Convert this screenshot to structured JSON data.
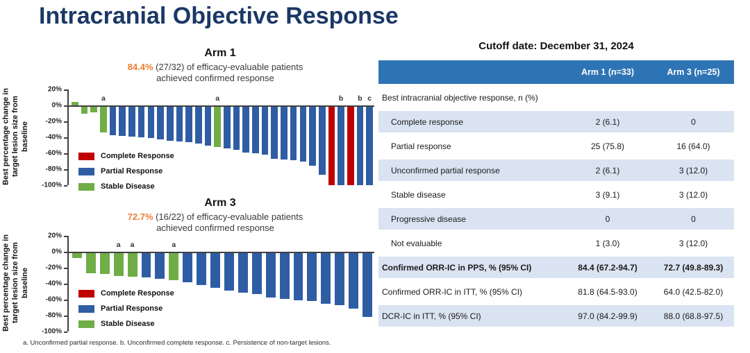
{
  "page": {
    "title": "Intracranial Objective Response",
    "footnote": "a. Unconfirmed partial response. b. Unconfirmed complete response. c. Persistence of non-target lesions."
  },
  "colors": {
    "title_navy": "#1b3866",
    "accent_orange": "#ED7D31",
    "bar_red": "#C00000",
    "bar_blue": "#2F5DA4",
    "bar_green": "#6FAE46",
    "axis": "#404040",
    "table_header_blue": "#2E74B5",
    "table_row_shade": "#DAE3F1"
  },
  "chart_data": [
    {
      "type": "bar",
      "name": "arm1",
      "title": "Arm 1",
      "headline": {
        "pct": "84.4%",
        "text": "(27/32) of efficacy-evaluable patients",
        "line2": "achieved confirmed response"
      },
      "ylabel": "Best percentage change in\ntarget lesion size from\nbaseline",
      "xlabel": "",
      "ylim": [
        -100,
        20
      ],
      "yticks": [
        20,
        0,
        -20,
        -40,
        -60,
        -80,
        -100
      ],
      "legend": [
        {
          "key": "red",
          "label": "Complete Response"
        },
        {
          "key": "blue",
          "label": "Partial Response"
        },
        {
          "key": "green",
          "label": "Stable Disease"
        }
      ],
      "bars": [
        {
          "v": 4,
          "c": "green"
        },
        {
          "v": -10,
          "c": "green"
        },
        {
          "v": -9,
          "c": "green"
        },
        {
          "v": -34,
          "c": "green",
          "note": "a"
        },
        {
          "v": -37,
          "c": "blue"
        },
        {
          "v": -38,
          "c": "blue"
        },
        {
          "v": -39,
          "c": "blue"
        },
        {
          "v": -40,
          "c": "blue"
        },
        {
          "v": -41,
          "c": "blue"
        },
        {
          "v": -43,
          "c": "blue"
        },
        {
          "v": -44,
          "c": "blue"
        },
        {
          "v": -45,
          "c": "blue"
        },
        {
          "v": -46,
          "c": "blue"
        },
        {
          "v": -48,
          "c": "blue"
        },
        {
          "v": -50,
          "c": "blue"
        },
        {
          "v": -52,
          "c": "green",
          "note": "a"
        },
        {
          "v": -54,
          "c": "blue"
        },
        {
          "v": -56,
          "c": "blue"
        },
        {
          "v": -59,
          "c": "blue"
        },
        {
          "v": -60,
          "c": "blue"
        },
        {
          "v": -62,
          "c": "blue"
        },
        {
          "v": -67,
          "c": "blue"
        },
        {
          "v": -68,
          "c": "blue"
        },
        {
          "v": -69,
          "c": "blue"
        },
        {
          "v": -70,
          "c": "blue"
        },
        {
          "v": -76,
          "c": "blue"
        },
        {
          "v": -87,
          "c": "blue"
        },
        {
          "v": -100,
          "c": "red"
        },
        {
          "v": -100,
          "c": "blue",
          "note": "b"
        },
        {
          "v": -100,
          "c": "red"
        },
        {
          "v": -100,
          "c": "blue",
          "note": "b"
        },
        {
          "v": -100,
          "c": "blue",
          "note": "c"
        }
      ]
    },
    {
      "type": "bar",
      "name": "arm3",
      "title": "Arm 3",
      "headline": {
        "pct": "72.7%",
        "text": "(16/22) of efficacy-evaluable patients",
        "line2": "achieved confirmed response"
      },
      "ylabel": "Best percentage change in\ntarget lesion size from\nbaseline",
      "xlabel": "",
      "ylim": [
        -100,
        20
      ],
      "yticks": [
        20,
        0,
        -20,
        -40,
        -60,
        -80,
        -100
      ],
      "legend": [
        {
          "key": "red",
          "label": "Complete Response"
        },
        {
          "key": "blue",
          "label": "Partial Response"
        },
        {
          "key": "green",
          "label": "Stable Disease"
        }
      ],
      "bars": [
        {
          "v": -8,
          "c": "green"
        },
        {
          "v": -27,
          "c": "green"
        },
        {
          "v": -28,
          "c": "green"
        },
        {
          "v": -30,
          "c": "green",
          "note": "a"
        },
        {
          "v": -31,
          "c": "green",
          "note": "a"
        },
        {
          "v": -32,
          "c": "blue"
        },
        {
          "v": -34,
          "c": "blue"
        },
        {
          "v": -36,
          "c": "green",
          "note": "a"
        },
        {
          "v": -38,
          "c": "blue"
        },
        {
          "v": -42,
          "c": "blue"
        },
        {
          "v": -45,
          "c": "blue"
        },
        {
          "v": -49,
          "c": "blue"
        },
        {
          "v": -51,
          "c": "blue"
        },
        {
          "v": -53,
          "c": "blue"
        },
        {
          "v": -57,
          "c": "blue"
        },
        {
          "v": -59,
          "c": "blue"
        },
        {
          "v": -61,
          "c": "blue"
        },
        {
          "v": -62,
          "c": "blue"
        },
        {
          "v": -65,
          "c": "blue"
        },
        {
          "v": -67,
          "c": "blue"
        },
        {
          "v": -71,
          "c": "blue"
        },
        {
          "v": -82,
          "c": "blue"
        }
      ]
    }
  ],
  "table": {
    "title": "Cutoff date: December 31, 2024",
    "columns": [
      "",
      "Arm 1 (n=33)",
      "Arm 3 (n=25)"
    ],
    "rows": [
      {
        "label": "Best intracranial objective response, n (%)",
        "arm1": "",
        "arm3": "",
        "section": true,
        "shaded": false,
        "bold": false,
        "indent": false
      },
      {
        "label": "Complete response",
        "arm1": "2 (6.1)",
        "arm3": "0",
        "section": false,
        "shaded": true,
        "bold": false,
        "indent": true
      },
      {
        "label": "Partial response",
        "arm1": "25 (75.8)",
        "arm3": "16 (64.0)",
        "section": false,
        "shaded": false,
        "bold": false,
        "indent": true
      },
      {
        "label": "Unconfirmed partial response",
        "arm1": "2 (6.1)",
        "arm3": "3 (12.0)",
        "section": false,
        "shaded": true,
        "bold": false,
        "indent": true
      },
      {
        "label": "Stable disease",
        "arm1": "3 (9.1)",
        "arm3": "3 (12.0)",
        "section": false,
        "shaded": false,
        "bold": false,
        "indent": true
      },
      {
        "label": "Progressive disease",
        "arm1": "0",
        "arm3": "0",
        "section": false,
        "shaded": true,
        "bold": false,
        "indent": true
      },
      {
        "label": "Not evaluable",
        "arm1": "1 (3.0)",
        "arm3": "3 (12.0)",
        "section": false,
        "shaded": false,
        "bold": false,
        "indent": true
      },
      {
        "label": "Confirmed ORR-IC in PPS, % (95% CI)",
        "arm1": "84.4 (67.2-94.7)",
        "arm3": "72.7 (49.8-89.3)",
        "section": false,
        "shaded": true,
        "bold": true,
        "indent": false
      },
      {
        "label": "Confirmed ORR-IC in ITT, % (95% CI)",
        "arm1": "81.8 (64.5-93.0)",
        "arm3": "64.0 (42.5-82.0)",
        "section": false,
        "shaded": false,
        "bold": false,
        "indent": false
      },
      {
        "label": "DCR-IC in ITT, % (95% CI)",
        "arm1": "97.0 (84.2-99.9)",
        "arm3": "88.0 (68.8-97.5)",
        "section": false,
        "shaded": true,
        "bold": false,
        "indent": false
      }
    ]
  }
}
